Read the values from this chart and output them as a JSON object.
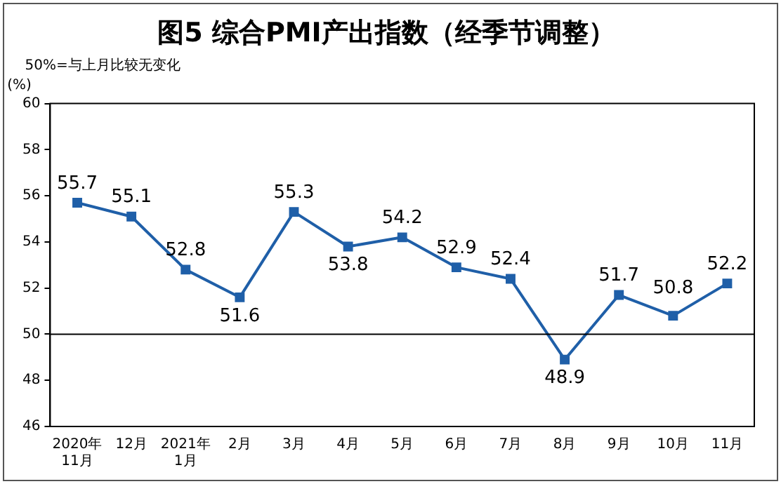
{
  "chart_data": {
    "type": "line",
    "title": "图5 综合PMI产出指数（经季节调整）",
    "ylabel": "(%)",
    "annotations": [
      "50%=与上月比较无变化"
    ],
    "categories": [
      "2020年\n11月",
      "12月",
      "2021年\n1月",
      "2月",
      "3月",
      "4月",
      "5月",
      "6月",
      "7月",
      "8月",
      "9月",
      "10月",
      "11月"
    ],
    "series": [
      {
        "color": "#1f5fa8",
        "values": [
          55.7,
          55.1,
          52.8,
          51.6,
          55.3,
          53.8,
          54.2,
          52.9,
          52.4,
          48.9,
          51.7,
          50.8,
          52.2
        ]
      }
    ],
    "ylim": [
      46,
      60
    ],
    "yticks": [
      46,
      48,
      50,
      52,
      54,
      56,
      58,
      60
    ],
    "ref_lines": [
      {
        "axis": "y",
        "value": 50,
        "color": "#000000"
      }
    ],
    "data_labels": true,
    "marker": "square",
    "line_style": "solid",
    "grid": false,
    "legend": false
  }
}
